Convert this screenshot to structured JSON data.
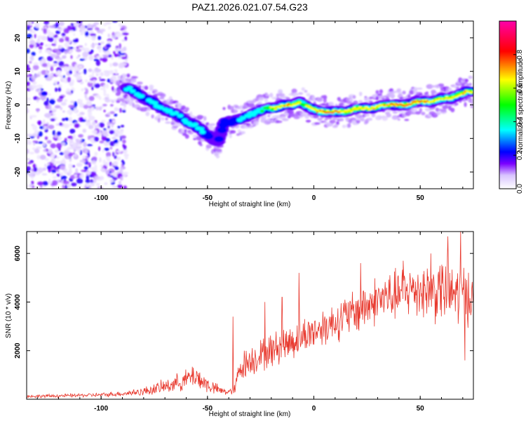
{
  "title": "PAZ1.2026.021.07.54.G23",
  "chart_data": [
    {
      "type": "heatmap",
      "xlabel": "Height of straight line (km)",
      "ylabel": "Frequency (Hz)",
      "xlim": [
        -135,
        75
      ],
      "ylim": [
        -25,
        25
      ],
      "xticks": [
        -100,
        -50,
        0,
        50
      ],
      "xtick_labels": [
        "-100",
        "-50",
        "0",
        "50"
      ],
      "yticks": [
        -20,
        -10,
        0,
        10,
        20
      ],
      "ytick_labels": [
        "-20",
        "-10",
        "0",
        "10",
        "20"
      ],
      "colorbar": {
        "label": "Normalized spectral amplitude",
        "ticks": [
          0.0,
          0.2,
          0.4,
          0.6,
          0.8
        ],
        "tick_labels": [
          "0.0",
          "0.2",
          "0.4",
          "0.6",
          "0.8"
        ],
        "range": [
          0,
          1
        ],
        "colormap": [
          "#ffffff",
          "#c8a8ff",
          "#7a00ff",
          "#0000ff",
          "#00ffff",
          "#00ff00",
          "#ffff00",
          "#ff0000",
          "#ff00aa"
        ]
      },
      "ridge_x": [
        -88,
        -84,
        -80,
        -76,
        -72,
        -68,
        -64,
        -60,
        -56,
        -52,
        -48,
        -45,
        -42,
        -38,
        -34,
        -30,
        -26,
        -22,
        -18,
        -14,
        -10,
        -7,
        -4,
        -1,
        2,
        5,
        8,
        12,
        16,
        20,
        24,
        28,
        32,
        36,
        40,
        44,
        48,
        52,
        56,
        60,
        64,
        68,
        72,
        75
      ],
      "ridge_y": [
        5,
        4,
        2,
        1,
        -1,
        -2,
        -3,
        -5,
        -6,
        -8,
        -10,
        -11,
        -5,
        -5,
        -4,
        -3,
        -2,
        -1,
        -1,
        0,
        0,
        1,
        0,
        -1,
        -2,
        -2,
        -2,
        -2,
        -2,
        -1,
        -1,
        -1,
        0,
        0,
        0,
        0,
        1,
        1,
        1,
        2,
        2,
        3,
        4,
        4
      ],
      "ridge_amplitude": [
        0.3,
        0.35,
        0.35,
        0.35,
        0.4,
        0.4,
        0.35,
        0.35,
        0.35,
        0.3,
        0.25,
        0.2,
        0.25,
        0.3,
        0.35,
        0.4,
        0.45,
        0.55,
        0.7,
        0.85,
        0.75,
        0.6,
        0.6,
        0.7,
        0.8,
        0.85,
        0.85,
        0.85,
        0.75,
        0.7,
        0.7,
        0.75,
        0.8,
        0.85,
        0.9,
        0.9,
        0.85,
        0.85,
        0.8,
        0.7,
        0.7,
        0.75,
        0.8,
        0.8
      ],
      "noise_region_x": [
        -135,
        -88
      ],
      "noise_amplitude": 0.2
    },
    {
      "type": "line",
      "xlabel": "Height of straight line (km)",
      "ylabel": "SNR (10 * v/v)",
      "xlim": [
        -135,
        75
      ],
      "ylim": [
        0,
        6900
      ],
      "xticks": [
        -100,
        -50,
        0,
        50
      ],
      "xtick_labels": [
        "-100",
        "-50",
        "0",
        "50"
      ],
      "yticks": [
        2000,
        4000,
        6000
      ],
      "ytick_labels": [
        "2000",
        "4000",
        "6000"
      ],
      "line_color": "#e8392e",
      "envelope_x": [
        -135,
        -120,
        -100,
        -90,
        -80,
        -70,
        -60,
        -56,
        -52,
        -48,
        -44,
        -40,
        -37,
        -35,
        -30,
        -20,
        -10,
        0,
        10,
        20,
        30,
        40,
        45,
        50,
        55,
        60,
        65,
        70,
        75
      ],
      "envelope_mean": [
        120,
        140,
        180,
        230,
        320,
        520,
        800,
        1000,
        700,
        500,
        350,
        300,
        400,
        1300,
        1600,
        2000,
        2400,
        2800,
        3200,
        3600,
        4100,
        4300,
        4500,
        4550,
        4400,
        4500,
        4300,
        4350,
        4250
      ],
      "envelope_noise": [
        60,
        60,
        70,
        90,
        150,
        250,
        350,
        450,
        350,
        250,
        150,
        120,
        200,
        500,
        550,
        600,
        650,
        650,
        700,
        800,
        850,
        900,
        950,
        1000,
        1050,
        1150,
        1200,
        1100,
        900
      ],
      "spikes": [
        {
          "x": -38,
          "y": 3400
        },
        {
          "x": -23,
          "y": 4000
        },
        {
          "x": -15,
          "y": 4200
        },
        {
          "x": -7,
          "y": 5200
        },
        {
          "x": 22,
          "y": 5600
        },
        {
          "x": 42,
          "y": 5700
        },
        {
          "x": 55,
          "y": 6000
        },
        {
          "x": 63,
          "y": 6700
        },
        {
          "x": 69,
          "y": 6900
        },
        {
          "x": 71,
          "y": 1600
        }
      ]
    }
  ]
}
